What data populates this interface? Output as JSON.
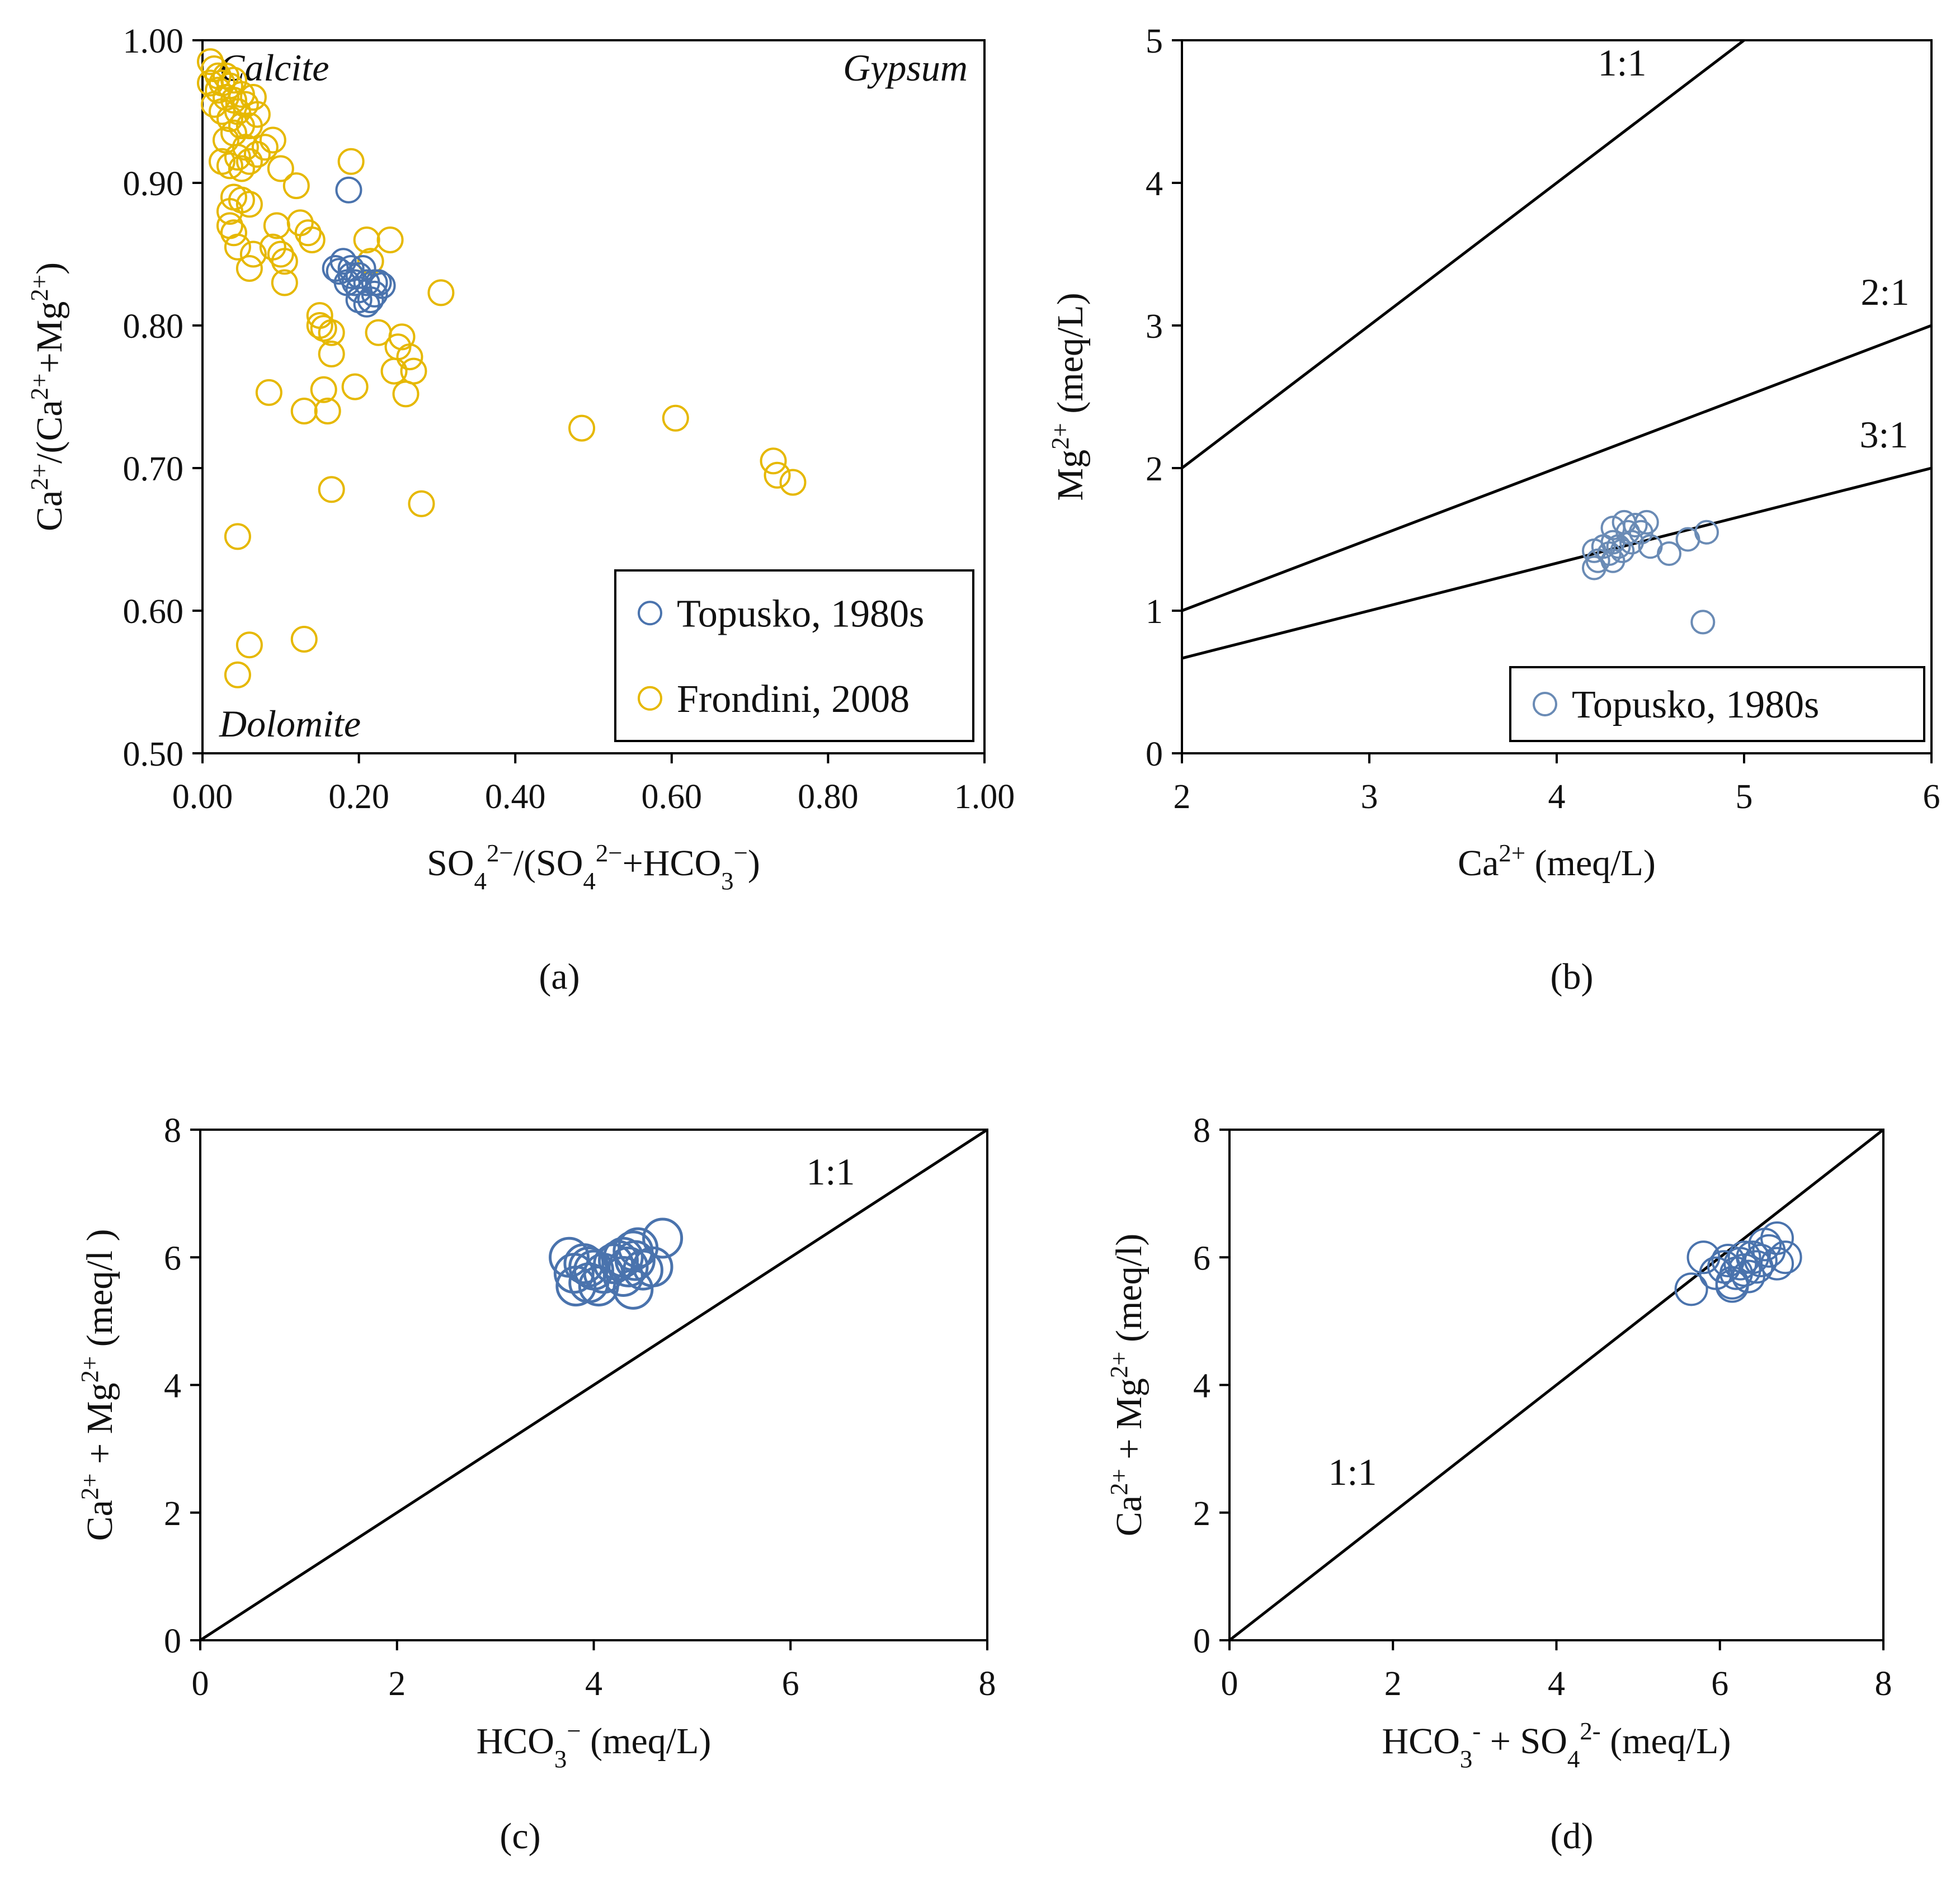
{
  "colors": {
    "topusko": "#4a73ad",
    "frondini": "#e6b800",
    "line": "#000000"
  },
  "chart_data": [
    {
      "id": "a",
      "type": "scatter",
      "caption": "(a)",
      "xlabel_parts": [
        "SO",
        "4",
        "2−",
        "/(SO",
        "4",
        "2−",
        "+HCO",
        "3",
        "−",
        ")"
      ],
      "ylabel_parts": [
        "Ca",
        "2+",
        "/(Ca",
        "2+",
        "+Mg",
        "2+",
        ")"
      ],
      "xlim": [
        0,
        1
      ],
      "ylim": [
        0.5,
        1
      ],
      "xticks": [
        "0.00",
        "0.20",
        "0.40",
        "0.60",
        "0.80",
        "1.00"
      ],
      "yticks": [
        "0.50",
        "0.60",
        "0.70",
        "0.80",
        "0.90",
        "1.00"
      ],
      "corner_labels": {
        "top_left": "Calcite",
        "top_right": "Gypsum",
        "bottom_left": "Dolomite"
      },
      "legend": {
        "position": "bottom-right",
        "entries": [
          "Topusko, 1980s",
          "Frondini, 2008"
        ]
      },
      "series": [
        {
          "name": "Topusko, 1980s",
          "color": "#4a73ad",
          "points": [
            [
              0.187,
              0.895
            ],
            [
              0.17,
              0.84
            ],
            [
              0.18,
              0.845
            ],
            [
              0.19,
              0.835
            ],
            [
              0.195,
              0.83
            ],
            [
              0.2,
              0.825
            ],
            [
              0.21,
              0.83
            ],
            [
              0.205,
              0.84
            ],
            [
              0.22,
              0.83
            ],
            [
              0.23,
              0.828
            ],
            [
              0.185,
              0.83
            ],
            [
              0.2,
              0.818
            ],
            [
              0.21,
              0.815
            ],
            [
              0.22,
              0.822
            ],
            [
              0.19,
              0.84
            ],
            [
              0.175,
              0.838
            ],
            [
              0.2,
              0.835
            ],
            [
              0.215,
              0.818
            ],
            [
              0.225,
              0.83
            ]
          ]
        },
        {
          "name": "Frondini, 2008",
          "color": "#e6b800",
          "points": [
            [
              0.01,
              0.985
            ],
            [
              0.015,
              0.98
            ],
            [
              0.02,
              0.975
            ],
            [
              0.01,
              0.97
            ],
            [
              0.02,
              0.965
            ],
            [
              0.025,
              0.97
            ],
            [
              0.03,
              0.975
            ],
            [
              0.035,
              0.968
            ],
            [
              0.04,
              0.972
            ],
            [
              0.03,
              0.96
            ],
            [
              0.04,
              0.958
            ],
            [
              0.05,
              0.962
            ],
            [
              0.015,
              0.955
            ],
            [
              0.025,
              0.95
            ],
            [
              0.035,
              0.945
            ],
            [
              0.045,
              0.95
            ],
            [
              0.055,
              0.955
            ],
            [
              0.065,
              0.96
            ],
            [
              0.07,
              0.948
            ],
            [
              0.06,
              0.94
            ],
            [
              0.05,
              0.94
            ],
            [
              0.04,
              0.935
            ],
            [
              0.03,
              0.93
            ],
            [
              0.025,
              0.915
            ],
            [
              0.035,
              0.912
            ],
            [
              0.045,
              0.918
            ],
            [
              0.055,
              0.925
            ],
            [
              0.08,
              0.925
            ],
            [
              0.09,
              0.93
            ],
            [
              0.07,
              0.92
            ],
            [
              0.06,
              0.915
            ],
            [
              0.1,
              0.91
            ],
            [
              0.05,
              0.91
            ],
            [
              0.04,
              0.89
            ],
            [
              0.05,
              0.888
            ],
            [
              0.06,
              0.885
            ],
            [
              0.035,
              0.88
            ],
            [
              0.035,
              0.87
            ],
            [
              0.04,
              0.865
            ],
            [
              0.045,
              0.855
            ],
            [
              0.06,
              0.84
            ],
            [
              0.065,
              0.85
            ],
            [
              0.095,
              0.87
            ],
            [
              0.09,
              0.855
            ],
            [
              0.1,
              0.85
            ],
            [
              0.105,
              0.845
            ],
            [
              0.105,
              0.83
            ],
            [
              0.12,
              0.898
            ],
            [
              0.125,
              0.872
            ],
            [
              0.135,
              0.865
            ],
            [
              0.14,
              0.86
            ],
            [
              0.19,
              0.915
            ],
            [
              0.21,
              0.86
            ],
            [
              0.215,
              0.845
            ],
            [
              0.24,
              0.86
            ],
            [
              0.15,
              0.807
            ],
            [
              0.15,
              0.8
            ],
            [
              0.155,
              0.798
            ],
            [
              0.165,
              0.795
            ],
            [
              0.165,
              0.78
            ],
            [
              0.225,
              0.795
            ],
            [
              0.25,
              0.785
            ],
            [
              0.255,
              0.792
            ],
            [
              0.265,
              0.778
            ],
            [
              0.27,
              0.768
            ],
            [
              0.245,
              0.768
            ],
            [
              0.26,
              0.752
            ],
            [
              0.195,
              0.757
            ],
            [
              0.155,
              0.755
            ],
            [
              0.085,
              0.753
            ],
            [
              0.13,
              0.74
            ],
            [
              0.16,
              0.74
            ],
            [
              0.165,
              0.685
            ],
            [
              0.045,
              0.652
            ],
            [
              0.06,
              0.576
            ],
            [
              0.13,
              0.58
            ],
            [
              0.045,
              0.555
            ],
            [
              0.305,
              0.823
            ],
            [
              0.28,
              0.675
            ],
            [
              0.485,
              0.728
            ],
            [
              0.605,
              0.735
            ],
            [
              0.73,
              0.705
            ],
            [
              0.735,
              0.695
            ],
            [
              0.755,
              0.69
            ]
          ]
        }
      ]
    },
    {
      "id": "b",
      "type": "scatter",
      "caption": "(b)",
      "xlabel_parts": [
        "Ca",
        "2+",
        " (meq/L)"
      ],
      "ylabel_parts": [
        "Mg",
        "2+",
        " (meq/L)"
      ],
      "xlim": [
        2,
        6
      ],
      "ylim": [
        0,
        5
      ],
      "xticks": [
        "2",
        "3",
        "4",
        "5",
        "6"
      ],
      "yticks": [
        "0",
        "1",
        "2",
        "3",
        "4",
        "5"
      ],
      "ref_lines": [
        {
          "label": "1:1",
          "slope": 1.0
        },
        {
          "label": "2:1",
          "slope": 0.5
        },
        {
          "label": "3:1",
          "slope": 0.3333
        }
      ],
      "legend": {
        "position": "bottom-right",
        "entries": [
          "Topusko, 1980s"
        ]
      },
      "series": [
        {
          "name": "Topusko, 1980s",
          "color": "#6a8bb5",
          "points": [
            [
              4.2,
              1.42
            ],
            [
              4.22,
              1.35
            ],
            [
              4.2,
              1.3
            ],
            [
              4.28,
              1.4
            ],
            [
              4.3,
              1.48
            ],
            [
              4.3,
              1.58
            ],
            [
              4.33,
              1.45
            ],
            [
              4.36,
              1.62
            ],
            [
              4.38,
              1.55
            ],
            [
              4.4,
              1.48
            ],
            [
              4.42,
              1.6
            ],
            [
              4.45,
              1.55
            ],
            [
              4.48,
              1.62
            ],
            [
              4.5,
              1.45
            ],
            [
              4.35,
              1.42
            ],
            [
              4.3,
              1.35
            ],
            [
              4.25,
              1.45
            ],
            [
              4.6,
              1.4
            ],
            [
              4.7,
              1.5
            ],
            [
              4.8,
              1.55
            ],
            [
              4.78,
              0.92
            ]
          ]
        }
      ]
    },
    {
      "id": "c",
      "type": "scatter",
      "caption": "(c)",
      "xlabel_parts": [
        "HCO",
        "3",
        "−",
        " (meq/L)"
      ],
      "ylabel_parts": [
        "Ca",
        "2+",
        " + Mg",
        "2+",
        " (meq/l )"
      ],
      "xlim": [
        0,
        8
      ],
      "ylim": [
        0,
        8
      ],
      "xticks": [
        "0",
        "2",
        "4",
        "6",
        "8"
      ],
      "yticks": [
        "0",
        "2",
        "4",
        "6",
        "8"
      ],
      "ref_lines": [
        {
          "label": "1:1",
          "slope": 1.0
        }
      ],
      "series": [
        {
          "name": "Topusko, 1980s",
          "color": "#4a73ad",
          "points": [
            [
              3.75,
              6.0
            ],
            [
              3.8,
              5.75
            ],
            [
              3.82,
              5.55
            ],
            [
              3.9,
              5.9
            ],
            [
              3.95,
              5.6
            ],
            [
              4.0,
              5.8
            ],
            [
              4.05,
              5.55
            ],
            [
              4.1,
              5.75
            ],
            [
              4.2,
              5.9
            ],
            [
              4.3,
              6.0
            ],
            [
              4.3,
              5.7
            ],
            [
              4.35,
              5.85
            ],
            [
              4.4,
              6.1
            ],
            [
              4.4,
              5.5
            ],
            [
              4.42,
              5.95
            ],
            [
              4.45,
              6.15
            ],
            [
              4.5,
              5.8
            ],
            [
              4.6,
              5.85
            ],
            [
              4.7,
              6.3
            ],
            [
              3.95,
              5.85
            ],
            [
              4.25,
              5.95
            ]
          ]
        }
      ]
    },
    {
      "id": "d",
      "type": "scatter",
      "caption": "(d)",
      "xlabel_parts": [
        "HCO",
        "3",
        "-",
        " + SO",
        "4",
        "2-",
        " (meq/L)"
      ],
      "ylabel_parts": [
        "Ca",
        "2+",
        " + Mg",
        "2+",
        " (meq/l)"
      ],
      "xlim": [
        0,
        8
      ],
      "ylim": [
        0,
        8
      ],
      "xticks": [
        "0",
        "2",
        "4",
        "6",
        "8"
      ],
      "yticks": [
        "0",
        "2",
        "4",
        "6",
        "8"
      ],
      "ref_lines": [
        {
          "label": "1:1",
          "slope": 1.0
        }
      ],
      "series": [
        {
          "name": "Topusko, 1980s",
          "color": "#4a73ad",
          "points": [
            [
              5.65,
              5.5
            ],
            [
              5.8,
              6.0
            ],
            [
              5.95,
              5.75
            ],
            [
              6.05,
              5.85
            ],
            [
              6.1,
              5.95
            ],
            [
              6.15,
              5.6
            ],
            [
              6.2,
              5.75
            ],
            [
              6.25,
              5.9
            ],
            [
              6.3,
              5.8
            ],
            [
              6.35,
              5.7
            ],
            [
              6.4,
              6.0
            ],
            [
              6.45,
              5.85
            ],
            [
              6.5,
              5.95
            ],
            [
              6.55,
              6.2
            ],
            [
              6.6,
              6.1
            ],
            [
              6.7,
              6.3
            ],
            [
              6.7,
              5.9
            ],
            [
              6.8,
              6.0
            ],
            [
              6.15,
              5.55
            ],
            [
              6.3,
              6.0
            ]
          ]
        }
      ]
    }
  ]
}
